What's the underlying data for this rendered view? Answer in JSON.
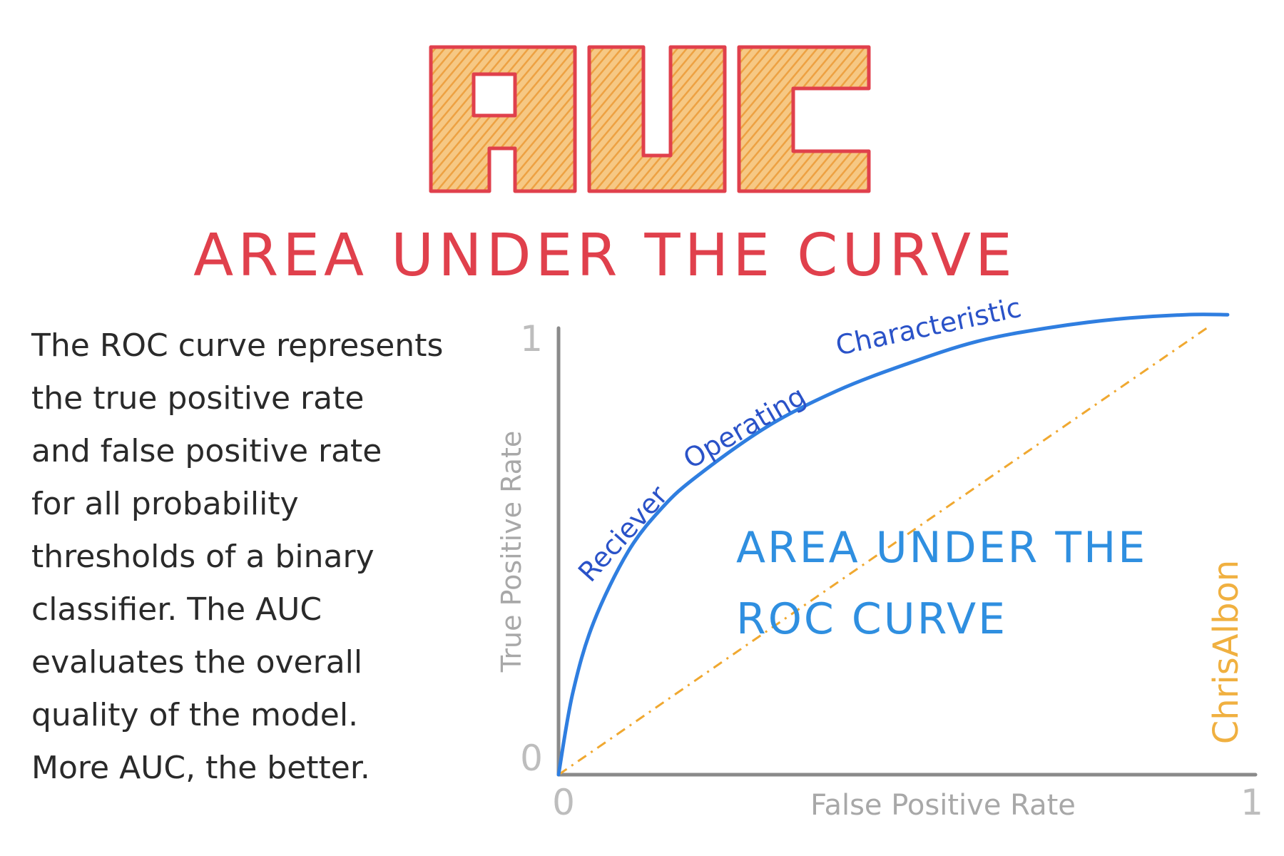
{
  "logo_text": "AUC",
  "subtitle": "AREA UNDER THE CURVE",
  "description_lines": [
    "The ROC curve represents",
    "the true positive rate",
    "and false positive rate",
    "for all probability",
    "thresholds of a binary",
    "classifier. The AUC",
    "evaluates the overall",
    "quality of the model.",
    "More AUC, the better."
  ],
  "chart": {
    "y_axis_label": "True Positive Rate",
    "x_axis_label": "False Positive Rate",
    "y_tick_low": "0",
    "y_tick_high": "1",
    "x_tick_low": "0",
    "x_tick_high": "1",
    "curve_label_1": "Reciever",
    "curve_label_2": "Operating",
    "curve_label_3": "Characteristic",
    "area_label_line1": "AREA UNDER THE",
    "area_label_line2": "ROC CURVE"
  },
  "signature": "ChrisAlbon",
  "colors": {
    "title_outline": "#e0404c",
    "title_fill": "#f2a23a",
    "subtitle": "#e0404c",
    "curve": "#2f7ee0",
    "curve_text": "#2a52c8",
    "area_text": "#2f8fe0",
    "diagonal": "#f0a830",
    "axis": "#8a8a8a",
    "signature": "#f0b040"
  },
  "chart_data": {
    "type": "line",
    "xlabel": "False Positive Rate",
    "ylabel": "True Positive Rate",
    "xlim": [
      0,
      1
    ],
    "ylim": [
      0,
      1
    ],
    "series": [
      {
        "name": "Reciever Operating Characteristic",
        "style": "solid",
        "x": [
          0,
          0.02,
          0.05,
          0.1,
          0.15,
          0.2,
          0.3,
          0.4,
          0.5,
          0.6,
          0.7,
          0.8,
          0.9,
          0.96
        ],
        "y": [
          0,
          0.18,
          0.34,
          0.5,
          0.6,
          0.67,
          0.78,
          0.86,
          0.92,
          0.97,
          1.0,
          1.02,
          1.03,
          1.03
        ]
      },
      {
        "style": "dashed",
        "x": [
          0,
          0.93
        ],
        "y": [
          0,
          1.0
        ]
      }
    ],
    "grid": false
  }
}
